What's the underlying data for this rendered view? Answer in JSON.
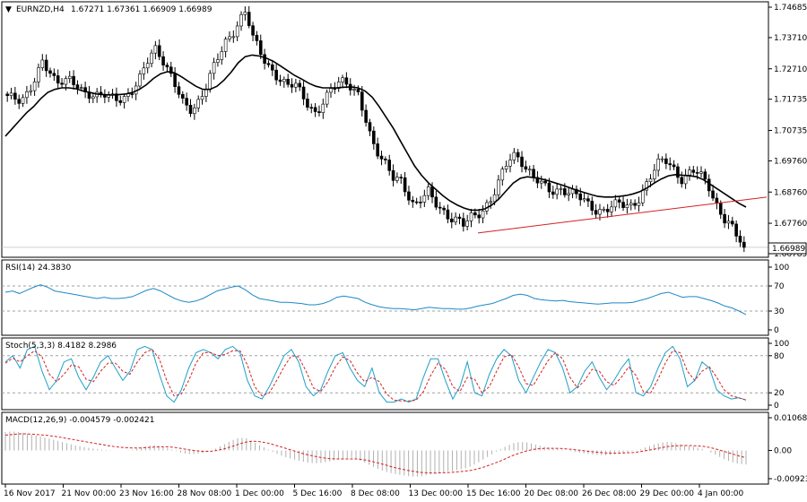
{
  "header": {
    "symbol": "EURNZD,H4",
    "ohlc": "1.67271 1.67361 1.66909 1.66989"
  },
  "colors": {
    "bull_candle": "#ffffff",
    "bear_candle": "#000000",
    "ma_line": "#000000",
    "trendline": "#d42020",
    "rsi_line": "#1e88c8",
    "stoch_main": "#1ea0c8",
    "stoch_signal": "#d42020",
    "macd_signal": "#d42020",
    "macd_hist": "#b0b0b0",
    "grid_dash": "#a0a0a0"
  },
  "chart_data": [
    {
      "panel": "price",
      "type": "candlestick",
      "y_ticks": [
        "1.74685",
        "1.73710",
        "1.72710",
        "1.71735",
        "1.70735",
        "1.69760",
        "1.68760",
        "1.67760",
        "1.66785"
      ],
      "ylim": [
        1.66785,
        1.74685
      ],
      "current_price_label": "1.66989",
      "close_path": [
        1.7185,
        1.717,
        1.716,
        1.7195,
        1.725,
        1.73,
        1.726,
        1.7215,
        1.723,
        1.724,
        1.7225,
        1.7195,
        1.718,
        1.7175,
        1.719,
        1.7185,
        1.718,
        1.7178,
        1.72,
        1.724,
        1.73,
        1.7345,
        1.731,
        1.726,
        1.721,
        1.716,
        1.714,
        1.716,
        1.72,
        1.7255,
        1.73,
        1.735,
        1.738,
        1.743,
        1.746,
        1.737,
        1.732,
        1.728,
        1.726,
        1.724,
        1.722,
        1.722,
        1.718,
        1.715,
        1.713,
        1.717,
        1.72,
        1.722,
        1.7225,
        1.7215,
        1.7195,
        1.712,
        1.703,
        1.6985,
        1.696,
        1.693,
        1.6925,
        1.687,
        1.682,
        1.685,
        1.688,
        1.685,
        1.682,
        1.679,
        1.678,
        1.677,
        1.68,
        1.681,
        1.6825,
        1.685,
        1.69,
        1.696,
        1.7,
        1.699,
        1.695,
        1.692,
        1.69,
        1.6885,
        1.688,
        1.689,
        1.6875,
        1.6865,
        1.685,
        1.683,
        1.682,
        1.682,
        1.683,
        1.6835,
        1.683,
        1.683,
        1.686,
        1.69,
        1.694,
        1.697,
        1.6975,
        1.695,
        1.692,
        1.6935,
        1.6945,
        1.692,
        1.689,
        1.684,
        1.68,
        1.6775,
        1.673,
        1.6699
      ],
      "ma_path": [
        1.7055,
        1.708,
        1.7105,
        1.713,
        1.715,
        1.7175,
        1.7195,
        1.7205,
        1.721,
        1.721,
        1.7207,
        1.72,
        1.7195,
        1.719,
        1.7188,
        1.7187,
        1.7188,
        1.719,
        1.7195,
        1.7205,
        1.722,
        1.724,
        1.7255,
        1.7262,
        1.7258,
        1.7245,
        1.723,
        1.7215,
        1.7205,
        1.7205,
        1.7215,
        1.7235,
        1.726,
        1.729,
        1.731,
        1.7315,
        1.7312,
        1.7305,
        1.7295,
        1.728,
        1.7265,
        1.725,
        1.7238,
        1.7225,
        1.7215,
        1.721,
        1.721,
        1.721,
        1.7212,
        1.7213,
        1.721,
        1.72,
        1.718,
        1.715,
        1.7115,
        1.708,
        1.704,
        1.7,
        1.696,
        1.693,
        1.6905,
        1.6885,
        1.6865,
        1.6848,
        1.6835,
        1.6825,
        1.6818,
        1.6818,
        1.6822,
        1.6835,
        1.6855,
        1.688,
        1.6905,
        1.692,
        1.6925,
        1.6922,
        1.6918,
        1.6912,
        1.6905,
        1.6898,
        1.689,
        1.6882,
        1.6875,
        1.6868,
        1.6862,
        1.686,
        1.686,
        1.6862,
        1.6865,
        1.687,
        1.6878,
        1.689,
        1.6905,
        1.6918,
        1.6928,
        1.6932,
        1.693,
        1.6928,
        1.6925,
        1.6915,
        1.69,
        1.6885,
        1.687,
        1.6855,
        1.684,
        1.6828
      ],
      "trendline": {
        "from": [
          "15 Dec 16:00",
          1.6745
        ],
        "to": [
          "5 Jan",
          1.686
        ]
      }
    },
    {
      "panel": "RSI",
      "title": "RSI(14) 24.3830",
      "y_ticks": [
        "100",
        "70",
        "30",
        "0"
      ],
      "levels": [
        70,
        30
      ],
      "ylim": [
        0,
        100
      ],
      "values": [
        60,
        62,
        58,
        63,
        68,
        72,
        68,
        62,
        60,
        58,
        56,
        54,
        52,
        50,
        52,
        50,
        50,
        51,
        53,
        58,
        63,
        66,
        62,
        56,
        50,
        46,
        44,
        46,
        50,
        56,
        62,
        65,
        68,
        70,
        64,
        56,
        50,
        48,
        46,
        44,
        44,
        43,
        42,
        40,
        40,
        42,
        46,
        52,
        54,
        52,
        50,
        44,
        40,
        37,
        35,
        34,
        34,
        33,
        32,
        34,
        36,
        35,
        34,
        34,
        33,
        33,
        35,
        38,
        40,
        42,
        46,
        50,
        55,
        57,
        55,
        50,
        48,
        47,
        46,
        47,
        45,
        44,
        43,
        42,
        41,
        42,
        43,
        43,
        43,
        44,
        47,
        50,
        54,
        58,
        60,
        56,
        52,
        53,
        53,
        50,
        47,
        43,
        38,
        35,
        30,
        24.383
      ]
    },
    {
      "panel": "Stochastic",
      "title": "Stoch(5,3,3) 8.4182 8.2986",
      "y_ticks": [
        "100",
        "80",
        "20",
        "0"
      ],
      "levels": [
        80,
        20
      ],
      "ylim": [
        0,
        100
      ],
      "main": [
        70,
        80,
        60,
        90,
        95,
        55,
        25,
        40,
        70,
        75,
        45,
        25,
        45,
        70,
        80,
        60,
        40,
        55,
        90,
        95,
        90,
        50,
        15,
        5,
        25,
        60,
        85,
        90,
        85,
        75,
        90,
        95,
        85,
        40,
        15,
        10,
        30,
        55,
        80,
        90,
        70,
        30,
        15,
        25,
        55,
        80,
        85,
        60,
        40,
        30,
        60,
        20,
        5,
        5,
        10,
        5,
        10,
        45,
        75,
        75,
        40,
        10,
        30,
        70,
        20,
        15,
        50,
        75,
        90,
        80,
        40,
        20,
        45,
        70,
        90,
        85,
        60,
        20,
        30,
        55,
        70,
        45,
        25,
        40,
        60,
        75,
        20,
        15,
        30,
        60,
        85,
        95,
        75,
        30,
        40,
        70,
        60,
        25,
        15,
        10,
        12,
        8.4182
      ],
      "signal": [
        68,
        76,
        70,
        80,
        88,
        78,
        50,
        38,
        50,
        65,
        62,
        42,
        38,
        55,
        68,
        68,
        55,
        50,
        70,
        85,
        90,
        75,
        40,
        15,
        18,
        40,
        68,
        85,
        85,
        80,
        82,
        88,
        88,
        65,
        30,
        15,
        20,
        40,
        62,
        80,
        78,
        55,
        28,
        22,
        38,
        62,
        78,
        72,
        52,
        38,
        45,
        38,
        18,
        8,
        7,
        7,
        8,
        22,
        48,
        68,
        58,
        30,
        22,
        45,
        42,
        20,
        30,
        55,
        78,
        82,
        62,
        35,
        32,
        52,
        72,
        85,
        75,
        45,
        28,
        40,
        58,
        55,
        38,
        32,
        45,
        62,
        48,
        22,
        20,
        42,
        68,
        88,
        85,
        55,
        40,
        55,
        62,
        45,
        25,
        15,
        12,
        8.2986
      ]
    },
    {
      "panel": "MACD",
      "title": "MACD(12,26,9) -0.004579 -0.002421",
      "y_ticks": [
        "0.010683",
        "0.00",
        "-0.00923"
      ],
      "ylim": [
        -0.00923,
        0.010683
      ],
      "hist": [
        0.006,
        0.0062,
        0.006,
        0.0055,
        0.005,
        0.0045,
        0.004,
        0.0034,
        0.0028,
        0.0022,
        0.0016,
        0.0012,
        0.0008,
        0.0004,
        0.0002,
        0.0001,
        0.0,
        0.0,
        0.0002,
        0.0008,
        0.0014,
        0.0018,
        0.0015,
        0.0008,
        0.0,
        -0.0008,
        -0.0012,
        -0.0012,
        -0.0008,
        -0.0002,
        0.0008,
        0.002,
        0.0032,
        0.004,
        0.0042,
        0.003,
        0.0018,
        0.0006,
        -0.0006,
        -0.0016,
        -0.0024,
        -0.003,
        -0.0036,
        -0.004,
        -0.0042,
        -0.004,
        -0.0036,
        -0.003,
        -0.0026,
        -0.0024,
        -0.003,
        -0.004,
        -0.0052,
        -0.0062,
        -0.007,
        -0.0076,
        -0.008,
        -0.0084,
        -0.0086,
        -0.0084,
        -0.008,
        -0.0076,
        -0.0072,
        -0.0068,
        -0.0064,
        -0.006,
        -0.0052,
        -0.004,
        -0.0026,
        -0.0012,
        0.0002,
        0.0014,
        0.0024,
        0.0028,
        0.0026,
        0.002,
        0.0014,
        0.001,
        0.0006,
        0.0002,
        -0.0002,
        -0.0006,
        -0.001,
        -0.0013,
        -0.0015,
        -0.0016,
        -0.0014,
        -0.001,
        -0.0006,
        -0.0002,
        0.0004,
        0.0012,
        0.002,
        0.0026,
        0.0028,
        0.0024,
        0.0018,
        0.0014,
        0.001,
        0.0004,
        -0.0006,
        -0.0018,
        -0.003,
        -0.0038,
        -0.0044,
        -0.004579
      ],
      "signal": [
        0.005,
        0.0052,
        0.0054,
        0.0054,
        0.0053,
        0.0051,
        0.0049,
        0.0046,
        0.0042,
        0.0038,
        0.0034,
        0.003,
        0.0026,
        0.0022,
        0.0018,
        0.0014,
        0.0011,
        0.0009,
        0.0008,
        0.0008,
        0.0009,
        0.0011,
        0.0012,
        0.0012,
        0.001,
        0.0006,
        0.0002,
        -0.0001,
        -0.0003,
        -0.0003,
        0.0,
        0.0005,
        0.0012,
        0.002,
        0.0027,
        0.003,
        0.0029,
        0.0025,
        0.0019,
        0.0012,
        0.0005,
        -0.0002,
        -0.0009,
        -0.0015,
        -0.002,
        -0.0024,
        -0.0027,
        -0.0028,
        -0.0028,
        -0.0028,
        -0.0028,
        -0.0031,
        -0.0036,
        -0.0042,
        -0.0048,
        -0.0055,
        -0.006,
        -0.0065,
        -0.0069,
        -0.0072,
        -0.0073,
        -0.0074,
        -0.0073,
        -0.0072,
        -0.007,
        -0.0068,
        -0.0065,
        -0.006,
        -0.0053,
        -0.0045,
        -0.0036,
        -0.0026,
        -0.0016,
        -0.0008,
        -0.0001,
        0.0004,
        0.0006,
        0.0007,
        0.0007,
        0.0006,
        0.0004,
        0.0002,
        -0.0001,
        -0.0004,
        -0.0006,
        -0.0008,
        -0.0009,
        -0.0009,
        -0.0008,
        -0.0007,
        -0.0004,
        0.0,
        0.0004,
        0.0009,
        0.0013,
        0.0015,
        0.0016,
        0.0016,
        0.0015,
        0.0013,
        0.0009,
        0.0003,
        -0.0004,
        -0.0011,
        -0.0018,
        -0.002421
      ]
    }
  ],
  "x_axis": {
    "labels": [
      "16 Nov 2017",
      "21 Nov 00:00",
      "23 Nov 16:00",
      "28 Nov 08:00",
      "1 Dec 00:00",
      "5 Dec 16:00",
      "8 Dec 08:00",
      "13 Dec 00:00",
      "15 Dec 16:00",
      "20 Dec 08:00",
      "26 Dec 08:00",
      "29 Dec 00:00",
      "4 Jan 00:00"
    ]
  }
}
